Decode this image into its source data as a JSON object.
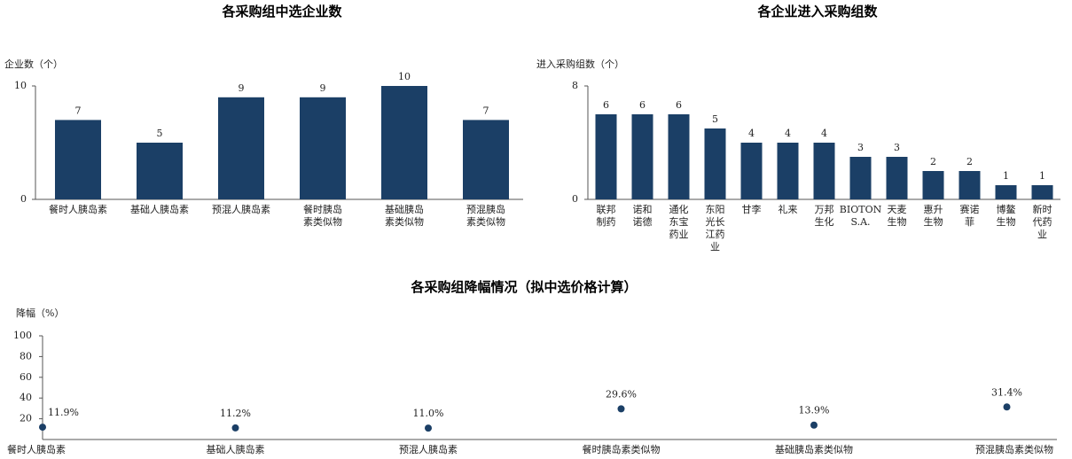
{
  "chart_data": [
    {
      "type": "bar",
      "title": "各采购组中选企业数",
      "y_label": "企业数（个）",
      "categories": [
        "餐时人胰岛素",
        "基础人胰岛素",
        "预混人胰岛素",
        "餐时胰岛素类似物",
        "基础胰岛素类似物",
        "预混胰岛素类似物"
      ],
      "values": [
        7,
        5,
        9,
        9,
        10,
        7
      ],
      "color": "#1b3f66",
      "ylim": [
        0,
        10
      ],
      "yticks": [
        0,
        10
      ]
    },
    {
      "type": "bar",
      "title": "各企业进入采购组数",
      "y_label": "进入采购组数（个）",
      "categories": [
        "联邦制药",
        "诺和诺德",
        "通化东宝药业",
        "东阳光长江药业",
        "甘李",
        "礼来",
        "万邦生化",
        "BIOTON S.A.",
        "天麦生物",
        "惠升生物",
        "赛诺菲",
        "博鳌生物",
        "新时代药业"
      ],
      "values": [
        6,
        6,
        6,
        5,
        4,
        4,
        4,
        3,
        3,
        2,
        2,
        1,
        1
      ],
      "color": "#1b3f66",
      "ylim": [
        0,
        8
      ],
      "yticks": [
        0,
        8
      ]
    },
    {
      "type": "dot",
      "title": "各采购组降幅情况（拟中选价格计算）",
      "y_label": "降幅（%）",
      "categories": [
        "餐时人胰岛素",
        "基础人胰岛素",
        "预混人胰岛素",
        "餐时胰岛素类似物",
        "基础胰岛素类似物",
        "预混胰岛素类似物"
      ],
      "values": [
        11.9,
        11.2,
        11.0,
        29.6,
        13.9,
        31.4
      ],
      "value_labels": [
        "11.9%",
        "11.2%",
        "11.0%",
        "29.6%",
        "13.9%",
        "31.4%"
      ],
      "color": "#1b3f66",
      "ylim": [
        0,
        100
      ],
      "yticks": [
        20,
        40,
        60,
        80,
        100
      ]
    }
  ]
}
